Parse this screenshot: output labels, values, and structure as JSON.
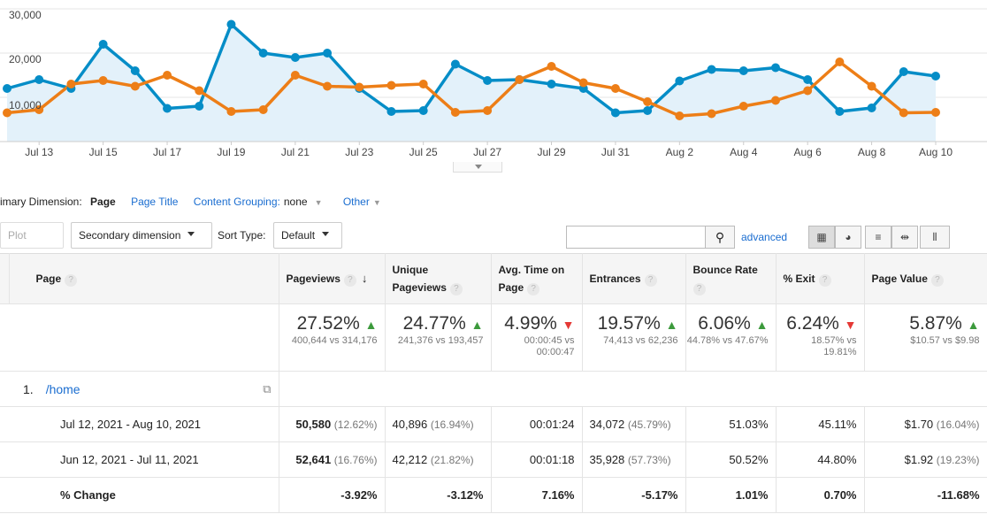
{
  "chart_data": {
    "type": "line",
    "categories": [
      "Jul 12",
      "Jul 13",
      "Jul 14",
      "Jul 15",
      "Jul 16",
      "Jul 17",
      "Jul 18",
      "Jul 19",
      "Jul 20",
      "Jul 21",
      "Jul 22",
      "Jul 23",
      "Jul 24",
      "Jul 25",
      "Jul 26",
      "Jul 27",
      "Jul 28",
      "Jul 29",
      "Jul 30",
      "Jul 31",
      "Aug 1",
      "Aug 2",
      "Aug 3",
      "Aug 4",
      "Aug 5",
      "Aug 6",
      "Aug 7",
      "Aug 8",
      "Aug 9",
      "Aug 10"
    ],
    "series": [
      {
        "color": "#058dc7",
        "values": [
          12000,
          14000,
          12000,
          22000,
          16000,
          7500,
          8000,
          26500,
          20000,
          19000,
          20000,
          12000,
          6800,
          7000,
          17500,
          13800,
          14000,
          13000,
          12000,
          6500,
          7000,
          13700,
          16300,
          16000,
          16700,
          14000,
          6800,
          7600,
          15800,
          14800
        ]
      },
      {
        "color": "#ed7e17",
        "values": [
          6500,
          7200,
          13000,
          13800,
          12500,
          15000,
          11500,
          6800,
          7200,
          15000,
          12500,
          12300,
          12700,
          13000,
          6600,
          7000,
          14000,
          17000,
          13300,
          12000,
          9000,
          5800,
          6300,
          8000,
          9300,
          11500,
          18000,
          12500,
          6500,
          6600
        ]
      }
    ],
    "ylim": [
      0,
      30000
    ],
    "yticks": [
      "10,000",
      "20,000",
      "30,000"
    ],
    "xticks": [
      "Jul 13",
      "Jul 15",
      "Jul 17",
      "Jul 19",
      "Jul 21",
      "Jul 23",
      "Jul 25",
      "Jul 27",
      "Jul 29",
      "Jul 31",
      "Aug 2",
      "Aug 4",
      "Aug 6",
      "Aug 8",
      "Aug 10"
    ]
  },
  "dimensions": {
    "label": "imary Dimension:",
    "active": "Page",
    "options": [
      "Page Title",
      "Content Grouping:"
    ],
    "grouping_value": "none",
    "other": "Other"
  },
  "toolbar": {
    "plot_rows": "Plot Rows",
    "secondary": "Secondary dimension",
    "sort_label": "Sort Type:",
    "sort_value": "Default",
    "advanced": "advanced"
  },
  "table": {
    "headers": {
      "page": "Page",
      "pageviews": "Pageviews",
      "unique": "Unique Pageviews",
      "avgtime": "Avg. Time on Page",
      "entrances": "Entrances",
      "bounce": "Bounce Rate",
      "exit": "% Exit",
      "value": "Page Value"
    },
    "summary": [
      {
        "big": "27.52%",
        "dir": "up",
        "sub": "400,644 vs 314,176"
      },
      {
        "big": "24.77%",
        "dir": "up",
        "sub": "241,376 vs 193,457"
      },
      {
        "big": "4.99%",
        "dir": "down",
        "sub": "00:00:45 vs 00:00:47"
      },
      {
        "big": "19.57%",
        "dir": "up",
        "sub": "74,413 vs 62,236"
      },
      {
        "big": "6.06%",
        "dir": "up",
        "sub": "44.78% vs 47.67%"
      },
      {
        "big": "6.24%",
        "dir": "down",
        "sub": "18.57% vs 19.81%"
      },
      {
        "big": "5.87%",
        "dir": "up",
        "sub": "$10.57 vs $9.98"
      }
    ],
    "page_row": {
      "index": "1.",
      "page": "/home"
    },
    "rows": [
      {
        "label": "Jul 12, 2021 - Aug 10, 2021",
        "pv": "50,580",
        "pv_pct": "(12.62%)",
        "upv": "40,896",
        "upv_pct": "(16.94%)",
        "time": "00:01:24",
        "ent": "34,072",
        "ent_pct": "(45.79%)",
        "bounce": "51.03%",
        "exit": "45.11%",
        "val": "$1.70",
        "val_pct": "(16.04%)"
      },
      {
        "label": "Jun 12, 2021 - Jul 11, 2021",
        "pv": "52,641",
        "pv_pct": "(16.76%)",
        "upv": "42,212",
        "upv_pct": "(21.82%)",
        "time": "00:01:18",
        "ent": "35,928",
        "ent_pct": "(57.73%)",
        "bounce": "50.52%",
        "exit": "44.80%",
        "val": "$1.92",
        "val_pct": "(19.23%)"
      }
    ],
    "change": {
      "label": "% Change",
      "pv": "-3.92%",
      "upv": "-3.12%",
      "time": "7.16%",
      "ent": "-5.17%",
      "bounce": "1.01%",
      "exit": "0.70%",
      "val": "-11.68%"
    }
  }
}
